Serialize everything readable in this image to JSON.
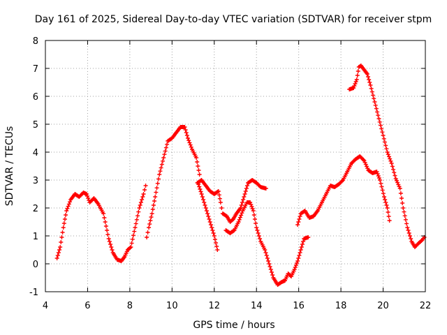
{
  "chart_data": {
    "type": "scatter",
    "title": "Day 161 of 2025, Sidereal Day-to-day VTEC variation (SDTVAR) for receiver stpm",
    "xlabel": "GPS time / hours",
    "ylabel": "SDTVAR / TECUs",
    "xlim": [
      4,
      22
    ],
    "ylim": [
      -1,
      8
    ],
    "xticks": [
      "4",
      "6",
      "8",
      "10",
      "12",
      "14",
      "16",
      "18",
      "20",
      "22"
    ],
    "yticks": [
      "-1",
      "0",
      "1",
      "2",
      "3",
      "4",
      "5",
      "6",
      "7",
      "8"
    ],
    "grid": true,
    "marker": "+",
    "color": "#ff0000",
    "series": [
      {
        "name": "seg1",
        "points": [
          [
            4.55,
            0.2
          ],
          [
            4.7,
            0.6
          ],
          [
            4.85,
            1.3
          ],
          [
            5.0,
            1.9
          ],
          [
            5.2,
            2.3
          ],
          [
            5.4,
            2.5
          ],
          [
            5.6,
            2.4
          ],
          [
            5.8,
            2.55
          ],
          [
            5.95,
            2.5
          ],
          [
            6.1,
            2.2
          ],
          [
            6.3,
            2.35
          ],
          [
            6.5,
            2.15
          ],
          [
            6.75,
            1.8
          ],
          [
            7.0,
            0.9
          ],
          [
            7.2,
            0.4
          ],
          [
            7.4,
            0.15
          ],
          [
            7.6,
            0.1
          ],
          [
            7.75,
            0.25
          ],
          [
            7.9,
            0.5
          ],
          [
            8.05,
            0.6
          ],
          [
            8.25,
            1.3
          ],
          [
            8.45,
            2.0
          ],
          [
            8.65,
            2.5
          ],
          [
            8.75,
            2.8
          ]
        ]
      },
      {
        "name": "seg2",
        "points": [
          [
            8.8,
            0.95
          ],
          [
            8.9,
            1.3
          ],
          [
            9.05,
            1.8
          ],
          [
            9.2,
            2.4
          ],
          [
            9.4,
            3.2
          ],
          [
            9.6,
            3.8
          ],
          [
            9.8,
            4.4
          ],
          [
            10.0,
            4.5
          ],
          [
            10.2,
            4.7
          ],
          [
            10.4,
            4.9
          ],
          [
            10.6,
            4.9
          ],
          [
            10.75,
            4.5
          ],
          [
            10.95,
            4.1
          ],
          [
            11.15,
            3.8
          ],
          [
            11.3,
            3.2
          ]
        ]
      },
      {
        "name": "seg3",
        "points": [
          [
            11.2,
            2.9
          ],
          [
            11.4,
            3.0
          ],
          [
            11.6,
            2.8
          ],
          [
            11.8,
            2.6
          ],
          [
            12.0,
            2.5
          ],
          [
            12.2,
            2.6
          ],
          [
            12.3,
            2.2
          ],
          [
            12.4,
            1.8
          ],
          [
            12.6,
            1.7
          ],
          [
            12.75,
            1.5
          ],
          [
            12.9,
            1.6
          ],
          [
            13.05,
            1.8
          ],
          [
            13.25,
            2.0
          ],
          [
            13.45,
            2.5
          ],
          [
            13.6,
            2.9
          ],
          [
            13.8,
            3.0
          ],
          [
            14.0,
            2.9
          ],
          [
            14.2,
            2.75
          ],
          [
            14.45,
            2.7
          ]
        ]
      },
      {
        "name": "seg4",
        "points": [
          [
            11.25,
            2.85
          ],
          [
            11.4,
            2.5
          ],
          [
            11.6,
            2.0
          ],
          [
            11.8,
            1.5
          ],
          [
            12.0,
            1.0
          ],
          [
            12.15,
            0.5
          ]
        ]
      },
      {
        "name": "seg5",
        "points": [
          [
            12.55,
            1.2
          ],
          [
            12.75,
            1.1
          ],
          [
            12.95,
            1.2
          ],
          [
            13.15,
            1.5
          ],
          [
            13.35,
            1.9
          ],
          [
            13.55,
            2.2
          ],
          [
            13.7,
            2.2
          ],
          [
            13.85,
            1.9
          ],
          [
            14.0,
            1.3
          ],
          [
            14.2,
            0.8
          ],
          [
            14.4,
            0.5
          ],
          [
            14.6,
            0.0
          ],
          [
            14.8,
            -0.5
          ],
          [
            15.0,
            -0.75
          ],
          [
            15.2,
            -0.65
          ],
          [
            15.35,
            -0.6
          ],
          [
            15.5,
            -0.35
          ],
          [
            15.65,
            -0.45
          ],
          [
            15.8,
            -0.2
          ],
          [
            15.95,
            0.1
          ],
          [
            16.1,
            0.5
          ],
          [
            16.25,
            0.9
          ],
          [
            16.45,
            0.95
          ]
        ]
      },
      {
        "name": "seg6",
        "points": [
          [
            15.95,
            1.4
          ],
          [
            16.1,
            1.8
          ],
          [
            16.3,
            1.9
          ],
          [
            16.5,
            1.65
          ],
          [
            16.7,
            1.7
          ],
          [
            16.9,
            1.9
          ],
          [
            17.1,
            2.2
          ],
          [
            17.3,
            2.5
          ],
          [
            17.5,
            2.8
          ],
          [
            17.7,
            2.75
          ],
          [
            17.9,
            2.85
          ],
          [
            18.1,
            3.0
          ],
          [
            18.3,
            3.3
          ],
          [
            18.5,
            3.6
          ],
          [
            18.7,
            3.75
          ],
          [
            18.9,
            3.85
          ],
          [
            19.1,
            3.7
          ],
          [
            19.3,
            3.35
          ],
          [
            19.5,
            3.25
          ],
          [
            19.7,
            3.3
          ],
          [
            19.85,
            3.0
          ],
          [
            20.05,
            2.4
          ],
          [
            20.2,
            2.0
          ],
          [
            20.3,
            1.55
          ]
        ]
      },
      {
        "name": "seg7",
        "points": [
          [
            18.4,
            6.25
          ],
          [
            18.6,
            6.3
          ],
          [
            18.75,
            6.6
          ],
          [
            18.85,
            7.05
          ],
          [
            18.95,
            7.1
          ],
          [
            19.1,
            6.95
          ],
          [
            19.25,
            6.8
          ],
          [
            19.4,
            6.4
          ],
          [
            19.6,
            5.8
          ],
          [
            19.8,
            5.2
          ],
          [
            20.0,
            4.6
          ],
          [
            20.2,
            4.0
          ],
          [
            20.4,
            3.6
          ],
          [
            20.6,
            3.05
          ],
          [
            20.8,
            2.7
          ],
          [
            20.95,
            2.0
          ],
          [
            21.15,
            1.3
          ],
          [
            21.35,
            0.8
          ],
          [
            21.5,
            0.6
          ],
          [
            21.7,
            0.75
          ],
          [
            21.85,
            0.85
          ],
          [
            21.95,
            0.95
          ]
        ]
      }
    ]
  }
}
